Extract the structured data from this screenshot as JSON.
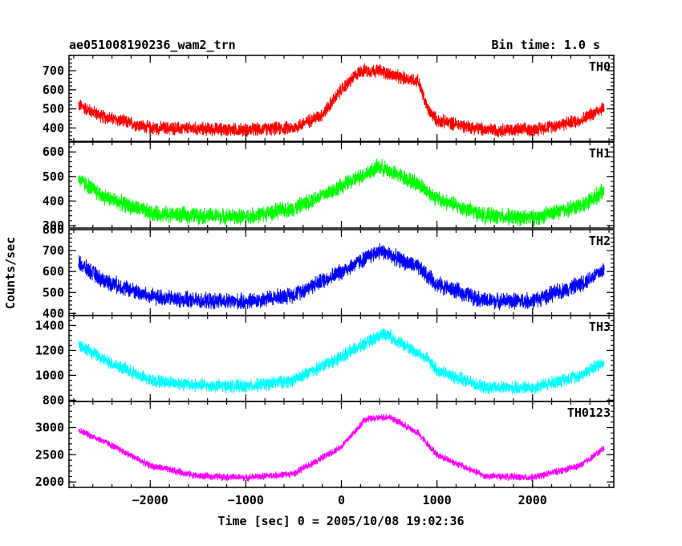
{
  "chart_data": {
    "type": "line",
    "title": "ae051008190236_wam2_trn",
    "subtitle": "Bin time: 1.0 s",
    "xlabel": "Time [sec] 0 = 2005/10/08 19:02:36",
    "ylabel": "Counts/sec",
    "xlim": [
      -2850,
      2850
    ],
    "xticks": [
      -2000,
      -1000,
      0,
      1000,
      2000
    ],
    "xtick_labels": [
      "−2000",
      "−1000",
      "0",
      "1000",
      "2000"
    ],
    "panels": [
      {
        "name": "TH0",
        "color": "#ff0000",
        "ylim": [
          330,
          780
        ],
        "yticks": [
          400,
          500,
          600,
          700
        ],
        "ytick_labels": [
          "400",
          "500",
          "600",
          "700"
        ],
        "x": [
          -2750,
          -2500,
          -2000,
          -1500,
          -1000,
          -500,
          -200,
          0,
          200,
          400,
          600,
          800,
          900,
          1000,
          1500,
          2000,
          2500,
          2750
        ],
        "y": [
          520,
          460,
          400,
          395,
          390,
          400,
          470,
          600,
          700,
          700,
          665,
          650,
          500,
          440,
          390,
          390,
          440,
          510
        ],
        "noise": 30
      },
      {
        "name": "TH1",
        "color": "#00ff00",
        "ylim": [
          290,
          640
        ],
        "yticks": [
          300,
          400,
          500,
          600
        ],
        "ytick_labels": [
          "300",
          "400",
          "500",
          "600"
        ],
        "x": [
          -2750,
          -2500,
          -2000,
          -1500,
          -1000,
          -500,
          0,
          400,
          800,
          1000,
          1500,
          2000,
          2500,
          2750
        ],
        "y": [
          490,
          420,
          350,
          340,
          335,
          370,
          460,
          540,
          470,
          410,
          340,
          330,
          380,
          440
        ],
        "noise": 28
      },
      {
        "name": "TH2",
        "color": "#0000ff",
        "ylim": [
          390,
          800
        ],
        "yticks": [
          400,
          500,
          600,
          700,
          800
        ],
        "ytick_labels": [
          "400",
          "500",
          "600",
          "700",
          "800"
        ],
        "x": [
          -2750,
          -2500,
          -2000,
          -1500,
          -1000,
          -500,
          0,
          400,
          800,
          1000,
          1500,
          2000,
          2500,
          2750
        ],
        "y": [
          640,
          560,
          480,
          460,
          455,
          490,
          600,
          700,
          620,
          540,
          460,
          460,
          540,
          610
        ],
        "noise": 33
      },
      {
        "name": "TH3",
        "color": "#00ffff",
        "ylim": [
          790,
          1480
        ],
        "yticks": [
          800,
          1000,
          1200,
          1400
        ],
        "ytick_labels": [
          "800",
          "1000",
          "1200",
          "1400"
        ],
        "x": [
          -2750,
          -2500,
          -2000,
          -1500,
          -1000,
          -500,
          0,
          450,
          900,
          1000,
          1500,
          2000,
          2500,
          2750
        ],
        "y": [
          1250,
          1130,
          960,
          920,
          910,
          960,
          1150,
          1340,
          1130,
          1040,
          900,
          900,
          1000,
          1110
        ],
        "noise": 45
      },
      {
        "name": "TH0123",
        "color": "#ff00ff",
        "ylim": [
          1900,
          3480
        ],
        "yticks": [
          2000,
          2500,
          3000
        ],
        "ytick_labels": [
          "2000",
          "2500",
          "3000"
        ],
        "x": [
          -2750,
          -2500,
          -2000,
          -1500,
          -1000,
          -500,
          0,
          250,
          500,
          800,
          1000,
          1500,
          2000,
          2500,
          2750
        ],
        "y": [
          2950,
          2760,
          2300,
          2110,
          2080,
          2150,
          2650,
          3150,
          3200,
          2900,
          2500,
          2110,
          2080,
          2300,
          2620
        ],
        "noise": 55
      }
    ]
  }
}
